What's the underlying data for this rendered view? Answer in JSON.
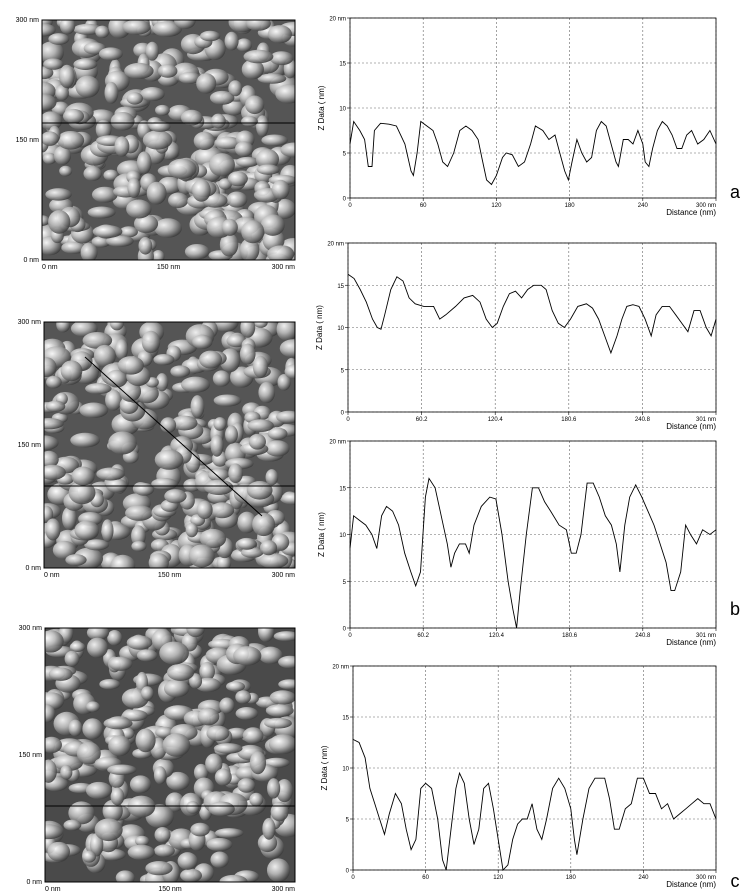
{
  "chart_data": [
    {
      "type": "line",
      "ylabel": "Z Data ( nm)",
      "xlabel": "Distance (nm)",
      "grid": true,
      "color": "#000000",
      "xlim": [
        0,
        300
      ],
      "ylim": [
        0,
        20
      ],
      "xticks": [
        0,
        60,
        120,
        180,
        240,
        {
          "value": 300,
          "label": "300 nm"
        }
      ],
      "yticks": [
        0,
        5,
        10,
        15,
        {
          "value": 20,
          "label": "20 nm"
        }
      ],
      "x": [
        0,
        3,
        8,
        12,
        15,
        18,
        20,
        25,
        32,
        38,
        45,
        50,
        52,
        55,
        58,
        63,
        68,
        72,
        76,
        80,
        85,
        90,
        95,
        100,
        105,
        108,
        112,
        116,
        120,
        125,
        128,
        133,
        138,
        143,
        148,
        152,
        158,
        163,
        168,
        172,
        176,
        179,
        182,
        186,
        190,
        194,
        198,
        202,
        206,
        210,
        214,
        218,
        220,
        224,
        228,
        232,
        236,
        240,
        242,
        245,
        248,
        252,
        256,
        260,
        264,
        268,
        272,
        276,
        280,
        285,
        290,
        295,
        300
      ],
      "values": [
        6,
        8.5,
        7.5,
        6.5,
        3.5,
        3.5,
        7.5,
        8.3,
        8.2,
        8,
        6,
        3,
        2.5,
        5,
        8.5,
        8,
        7.5,
        6,
        4,
        3.5,
        5,
        7.5,
        8,
        7.5,
        6.5,
        4.5,
        2,
        1.5,
        2.5,
        4.5,
        5,
        4.8,
        3.5,
        4,
        6,
        8,
        7.5,
        6.5,
        7,
        5,
        3,
        2,
        4,
        6.5,
        5,
        4,
        4.5,
        7.5,
        8.5,
        8,
        6,
        4,
        3.5,
        6.5,
        6.5,
        6,
        7.5,
        6,
        4,
        3.5,
        5.5,
        7.5,
        8.5,
        8,
        7,
        5.5,
        5.5,
        7,
        7.5,
        6,
        6.5,
        7.5,
        6
      ]
    },
    {
      "type": "line",
      "ylabel": "Z Data ( nm)",
      "xlabel": "Distance (nm)",
      "grid": true,
      "color": "#000000",
      "xlim": [
        0,
        301
      ],
      "ylim": [
        0,
        20
      ],
      "xticks": [
        0,
        60.2,
        120.4,
        180.6,
        240.8,
        {
          "value": 301,
          "label": "301 nm"
        }
      ],
      "yticks": [
        0,
        5,
        10,
        15,
        {
          "value": 20,
          "label": "20 nm"
        }
      ],
      "x": [
        0,
        5,
        10,
        15,
        20,
        24,
        27,
        30,
        35,
        40,
        45,
        50,
        55,
        62,
        70,
        75,
        80,
        88,
        95,
        102,
        108,
        113,
        118,
        122,
        127,
        132,
        137,
        142,
        147,
        152,
        158,
        162,
        167,
        172,
        177,
        182,
        188,
        195,
        200,
        205,
        210,
        215,
        220,
        224,
        228,
        233,
        238,
        243,
        248,
        252,
        257,
        263,
        268,
        273,
        278,
        283,
        288,
        293,
        297,
        301
      ],
      "values": [
        16.3,
        15.8,
        14.5,
        13,
        11,
        10,
        9.8,
        11.5,
        14.5,
        16,
        15.5,
        13.5,
        12.8,
        12.5,
        12.5,
        11,
        11.5,
        12.5,
        13.5,
        13.8,
        13,
        11,
        10,
        10.5,
        12.5,
        14,
        14.3,
        13.5,
        14.5,
        15,
        15,
        14.5,
        12,
        10.5,
        10,
        11,
        12.5,
        12.8,
        12.3,
        11,
        9,
        7,
        9,
        11,
        12.5,
        12.7,
        12.5,
        11,
        9,
        11.5,
        12.5,
        12.5,
        11.5,
        10.5,
        9.5,
        12,
        12,
        10,
        9,
        11
      ]
    },
    {
      "type": "line",
      "ylabel": "Z Data ( nm)",
      "xlabel": "Distance (nm)",
      "grid": true,
      "color": "#000000",
      "xlim": [
        0,
        301
      ],
      "ylim": [
        0,
        20
      ],
      "xticks": [
        0,
        60.2,
        120.4,
        180.6,
        240.8,
        {
          "value": 301,
          "label": "301 nm"
        }
      ],
      "yticks": [
        0,
        5,
        10,
        15,
        {
          "value": 20,
          "label": "20 nm"
        }
      ],
      "x": [
        0,
        3,
        8,
        13,
        18,
        22,
        26,
        30,
        35,
        40,
        45,
        50,
        54,
        58,
        62,
        65,
        70,
        75,
        80,
        83,
        86,
        90,
        95,
        98,
        102,
        108,
        115,
        120,
        125,
        130,
        134,
        137,
        140,
        145,
        150,
        155,
        160,
        165,
        172,
        178,
        182,
        186,
        190,
        195,
        200,
        205,
        210,
        215,
        219,
        222,
        226,
        230,
        235,
        240,
        245,
        250,
        255,
        260,
        264,
        267,
        272,
        276,
        280,
        285,
        290,
        296,
        301
      ],
      "values": [
        8.5,
        12,
        11.5,
        11,
        10,
        8.5,
        12,
        13,
        12.5,
        11,
        8,
        6,
        4.5,
        6,
        14,
        16,
        15,
        12,
        9,
        6.5,
        8,
        9,
        9,
        8,
        11,
        13,
        14,
        13.8,
        10,
        5,
        2,
        0,
        4,
        10,
        15,
        15,
        13.5,
        12.5,
        11,
        10.5,
        8,
        8,
        10,
        15.5,
        15.5,
        14,
        12,
        11,
        9,
        6,
        11,
        14,
        15.3,
        14,
        12.5,
        11,
        9,
        7,
        4,
        4,
        6,
        11,
        10,
        9,
        10.5,
        10,
        10.5
      ]
    },
    {
      "type": "line",
      "ylabel": "Z Data ( nm)",
      "xlabel": "Distance (nm)",
      "grid": true,
      "color": "#000000",
      "xlim": [
        0,
        300
      ],
      "ylim": [
        0,
        20
      ],
      "xticks": [
        0,
        60,
        120,
        180,
        240,
        {
          "value": 300,
          "label": "300 nm"
        }
      ],
      "yticks": [
        0,
        5,
        10,
        15,
        {
          "value": 20,
          "label": "20 nm"
        }
      ],
      "x": [
        0,
        5,
        10,
        14,
        18,
        22,
        26,
        30,
        35,
        40,
        44,
        48,
        52,
        56,
        60,
        65,
        70,
        74,
        77,
        80,
        85,
        88,
        92,
        96,
        100,
        104,
        108,
        112,
        116,
        120,
        124,
        128,
        132,
        136,
        140,
        144,
        148,
        152,
        156,
        160,
        165,
        170,
        175,
        180,
        183,
        185,
        190,
        195,
        200,
        208,
        212,
        216,
        220,
        225,
        230,
        235,
        240,
        245,
        250,
        255,
        260,
        265,
        270,
        275,
        280,
        285,
        290,
        295,
        300
      ],
      "values": [
        12.8,
        12.5,
        11,
        8,
        6.5,
        5,
        3.5,
        5.5,
        7.5,
        6.5,
        4,
        2,
        3,
        8,
        8.5,
        8,
        5,
        1,
        0,
        3,
        8,
        9.5,
        8.5,
        5,
        2.5,
        4,
        8,
        8.5,
        6,
        3,
        0,
        0.5,
        3,
        4.5,
        5,
        5,
        6.5,
        4,
        3,
        5,
        8,
        9,
        8,
        6,
        3,
        1.5,
        5,
        8,
        9,
        9,
        7,
        4,
        4,
        6,
        6.5,
        9,
        9,
        7.5,
        7.5,
        6,
        6.5,
        5,
        5.5,
        6,
        6.5,
        7,
        6.5,
        6.5,
        5
      ]
    }
  ],
  "afm_images": [
    {
      "y_labels": [
        "300 nm",
        "150 nm",
        "0 nm"
      ],
      "x_labels": [
        "0 nm",
        "150 nm",
        "300 nm"
      ]
    },
    {
      "y_labels": [
        "300 nm",
        "150 nm",
        "0 nm"
      ],
      "x_labels": [
        "0 nm",
        "150 nm",
        "300 nm"
      ]
    },
    {
      "y_labels": [
        "300 nm",
        "150 nm",
        "0 nm"
      ],
      "x_labels": [
        "0 nm",
        "150 nm",
        "300 nm"
      ]
    }
  ],
  "panel_labels": [
    "a",
    "b",
    "c"
  ]
}
